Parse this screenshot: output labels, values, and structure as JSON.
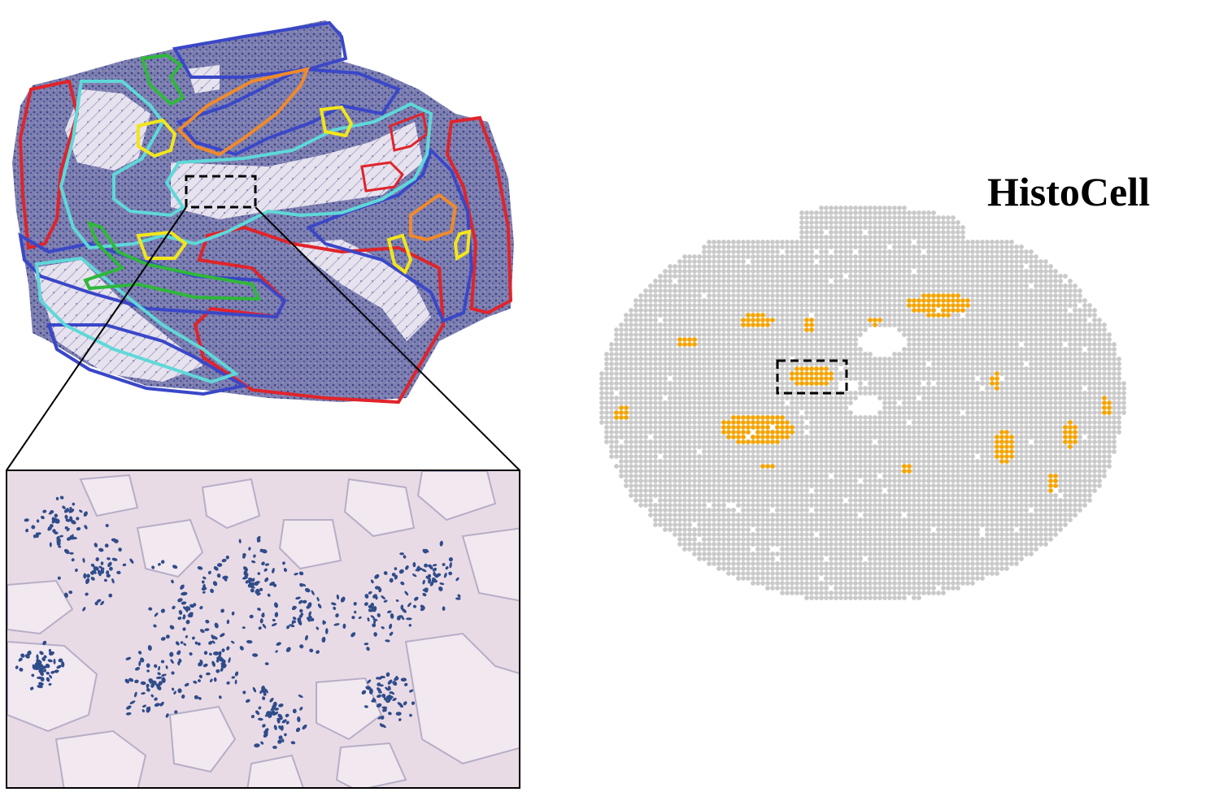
{
  "method_label": "HistoCell",
  "colors": {
    "background": "#ffffff",
    "tissue_stain": "#5a64a0",
    "tissue_light": "#cfc6de",
    "annotation_red": "#e0242a",
    "annotation_blue": "#3a47c8",
    "annotation_cyan": "#5fd8d8",
    "annotation_orange": "#f08a2a",
    "annotation_yellow": "#f2e61a",
    "annotation_green": "#2fb83a",
    "spot_gray": "#c9c9c9",
    "spot_highlight": "#f5a300",
    "inset_background": "#e9dbe6",
    "nuclei": "#2f4c8a",
    "zoom_box": "#000000"
  },
  "icons": {
    "tissue_section": "he-stained-tissue-image",
    "zoom_region": "dashed-rectangle",
    "spot_map": "spatial-spot-map"
  }
}
